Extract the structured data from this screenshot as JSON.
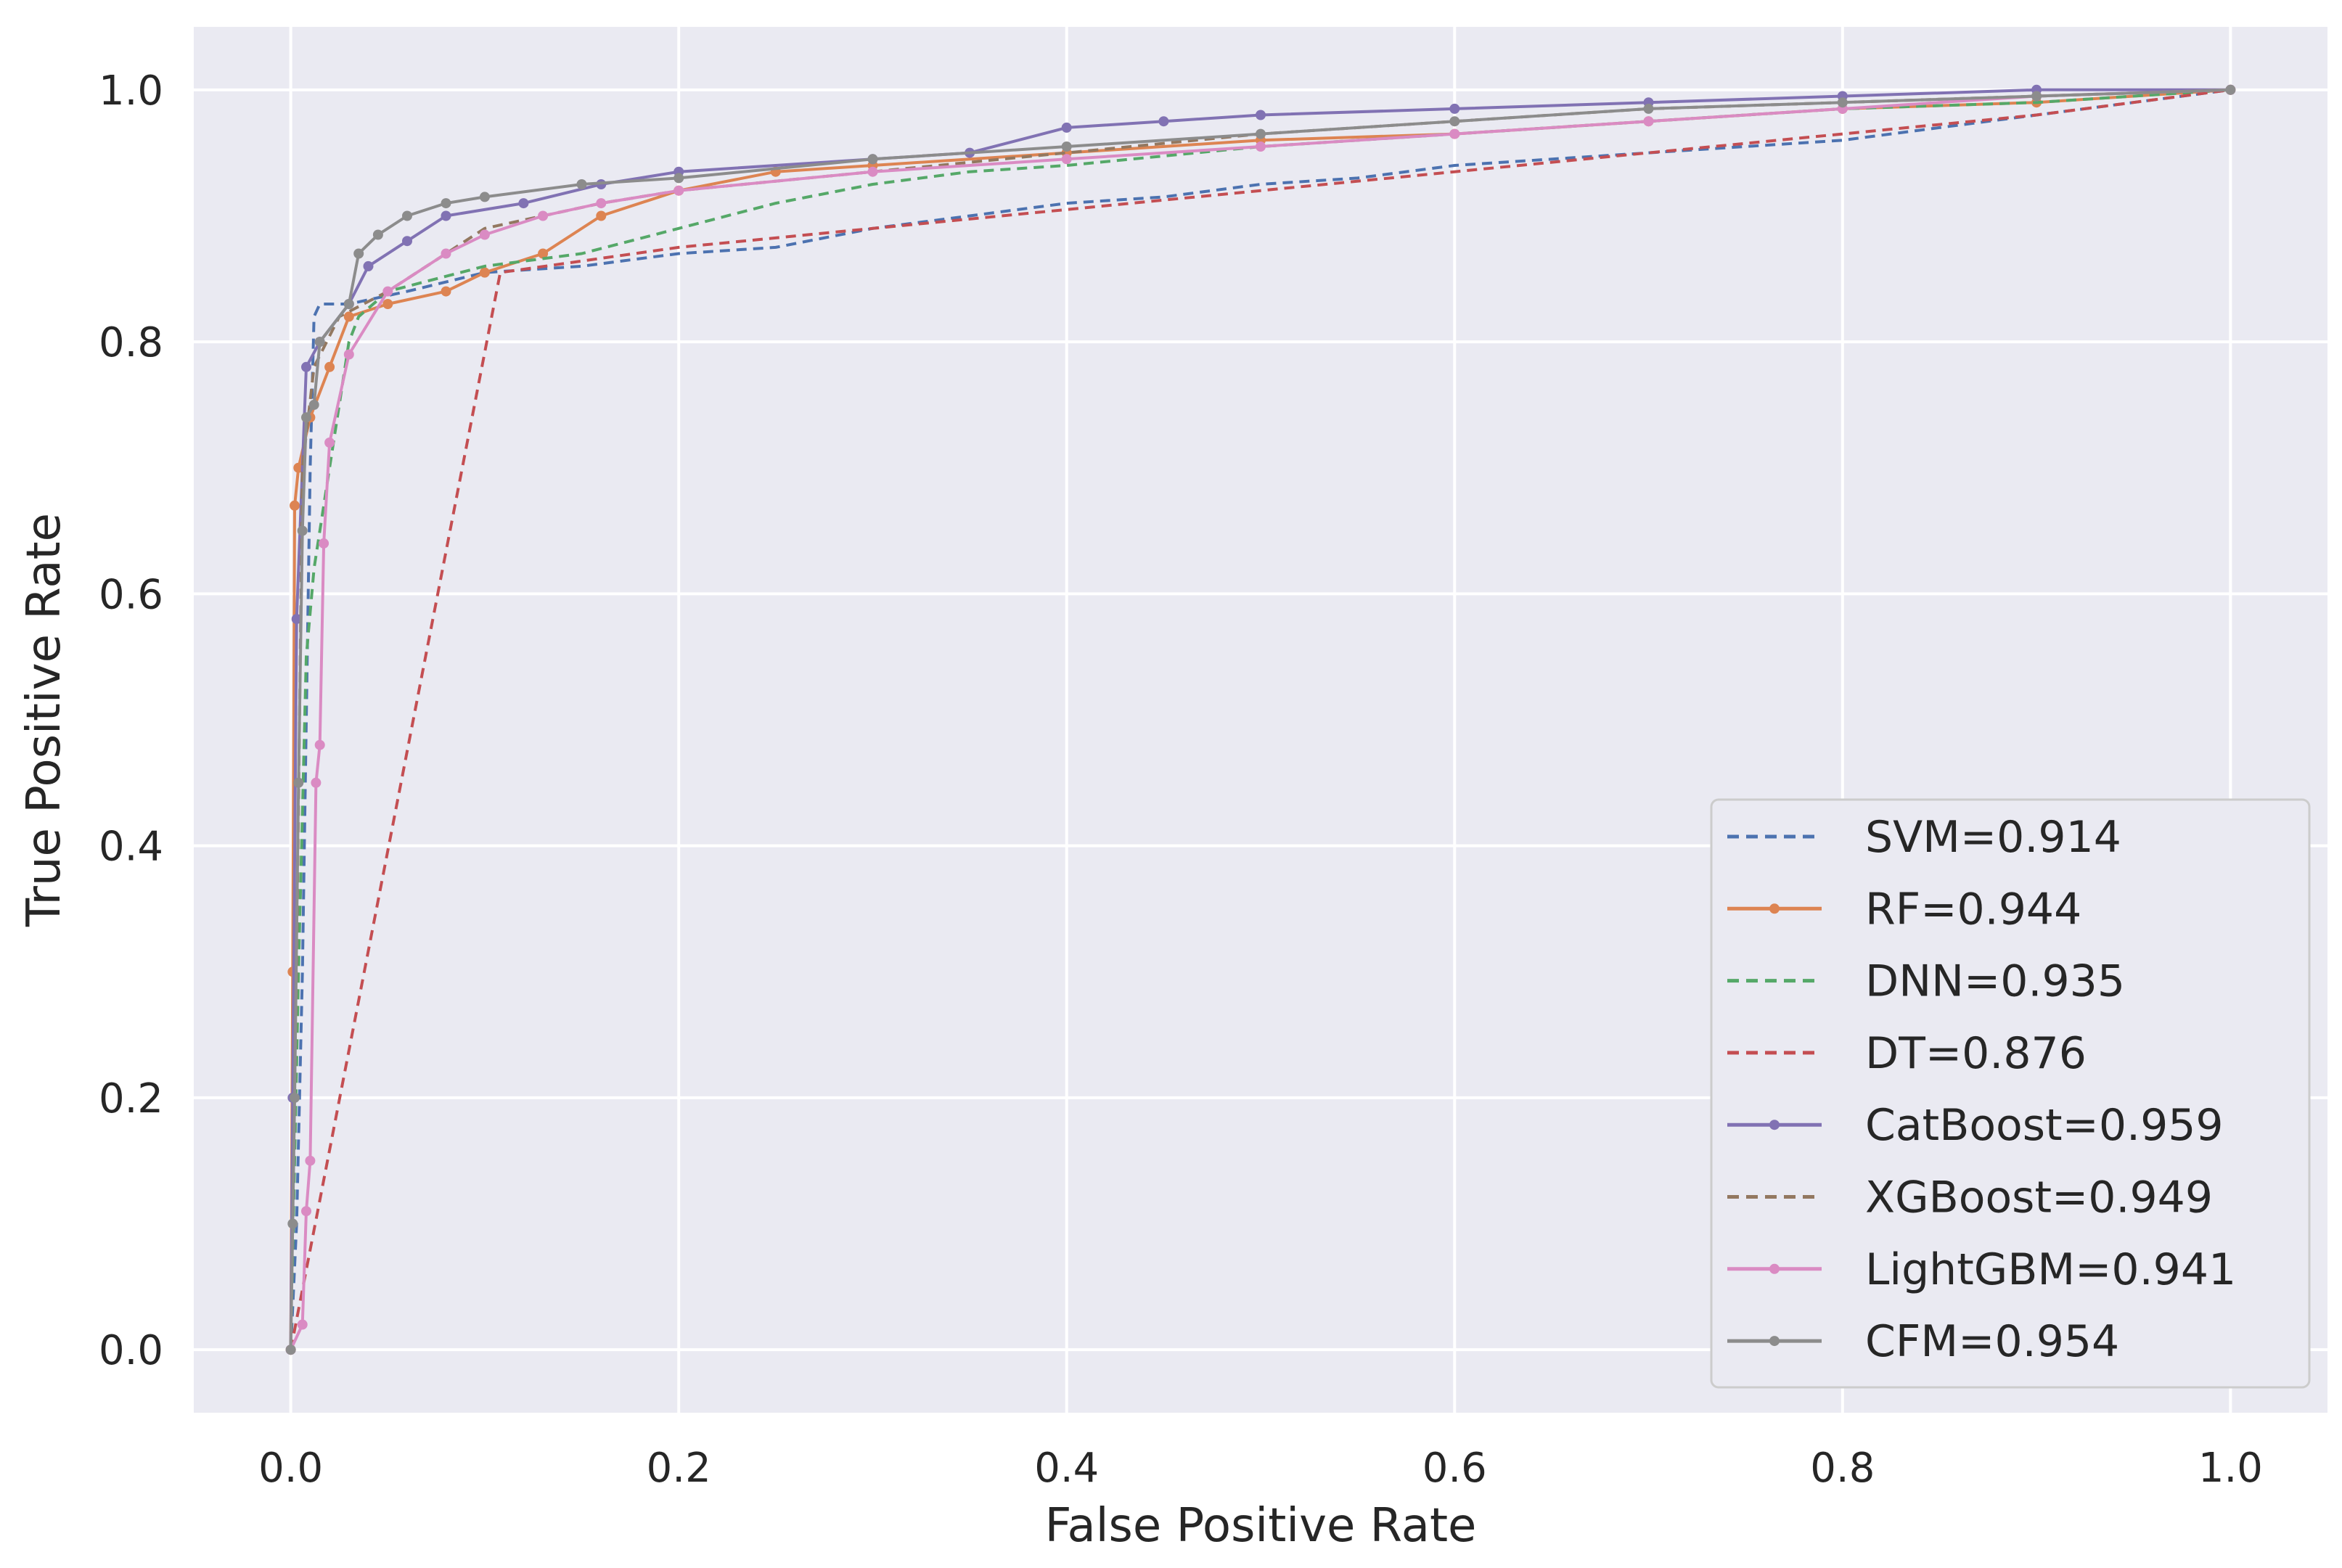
{
  "chart_data": {
    "type": "line",
    "title": "",
    "xlabel": "False Positive Rate",
    "ylabel": "True Positive Rate",
    "xlim": [
      -0.05,
      1.05
    ],
    "ylim": [
      -0.05,
      1.05
    ],
    "xticks": [
      "0.0",
      "0.2",
      "0.4",
      "0.6",
      "0.8",
      "1.0"
    ],
    "yticks": [
      "0.0",
      "0.2",
      "0.4",
      "0.6",
      "0.8",
      "1.0"
    ],
    "grid": true,
    "legend_position": "lower-right",
    "series": [
      {
        "name": "SVM=0.914",
        "color": "#4c72b0",
        "style": "dashed",
        "markers": false,
        "points": [
          [
            0,
            0
          ],
          [
            0.003,
            0.1
          ],
          [
            0.006,
            0.3
          ],
          [
            0.008,
            0.5
          ],
          [
            0.01,
            0.7
          ],
          [
            0.012,
            0.82
          ],
          [
            0.015,
            0.83
          ],
          [
            0.03,
            0.83
          ],
          [
            0.06,
            0.84
          ],
          [
            0.1,
            0.855
          ],
          [
            0.15,
            0.86
          ],
          [
            0.2,
            0.87
          ],
          [
            0.25,
            0.875
          ],
          [
            0.3,
            0.89
          ],
          [
            0.35,
            0.9
          ],
          [
            0.4,
            0.91
          ],
          [
            0.45,
            0.915
          ],
          [
            0.5,
            0.925
          ],
          [
            0.55,
            0.93
          ],
          [
            0.6,
            0.94
          ],
          [
            0.7,
            0.95
          ],
          [
            0.8,
            0.96
          ],
          [
            0.85,
            0.97
          ],
          [
            0.9,
            0.98
          ],
          [
            0.95,
            0.99
          ],
          [
            1.0,
            1.0
          ]
        ]
      },
      {
        "name": "RF=0.944",
        "color": "#dd8452",
        "style": "solid",
        "markers": true,
        "points": [
          [
            0,
            0
          ],
          [
            0.001,
            0.3
          ],
          [
            0.002,
            0.67
          ],
          [
            0.004,
            0.7
          ],
          [
            0.01,
            0.74
          ],
          [
            0.02,
            0.78
          ],
          [
            0.03,
            0.82
          ],
          [
            0.05,
            0.83
          ],
          [
            0.08,
            0.84
          ],
          [
            0.1,
            0.855
          ],
          [
            0.13,
            0.87
          ],
          [
            0.16,
            0.9
          ],
          [
            0.2,
            0.92
          ],
          [
            0.25,
            0.935
          ],
          [
            0.3,
            0.94
          ],
          [
            0.4,
            0.95
          ],
          [
            0.5,
            0.96
          ],
          [
            0.6,
            0.965
          ],
          [
            0.7,
            0.975
          ],
          [
            0.8,
            0.985
          ],
          [
            0.9,
            0.99
          ],
          [
            1.0,
            1.0
          ]
        ]
      },
      {
        "name": "DNN=0.935",
        "color": "#55a868",
        "style": "dashed",
        "markers": false,
        "points": [
          [
            0,
            0
          ],
          [
            0.004,
            0.3
          ],
          [
            0.008,
            0.55
          ],
          [
            0.012,
            0.62
          ],
          [
            0.02,
            0.7
          ],
          [
            0.025,
            0.75
          ],
          [
            0.03,
            0.8
          ],
          [
            0.035,
            0.82
          ],
          [
            0.05,
            0.84
          ],
          [
            0.1,
            0.86
          ],
          [
            0.15,
            0.87
          ],
          [
            0.2,
            0.89
          ],
          [
            0.25,
            0.91
          ],
          [
            0.3,
            0.925
          ],
          [
            0.35,
            0.935
          ],
          [
            0.4,
            0.94
          ],
          [
            0.5,
            0.955
          ],
          [
            0.6,
            0.965
          ],
          [
            0.7,
            0.975
          ],
          [
            0.8,
            0.985
          ],
          [
            0.9,
            0.99
          ],
          [
            1.0,
            1.0
          ]
        ]
      },
      {
        "name": "DT=0.876",
        "color": "#c44e52",
        "style": "dashed",
        "markers": false,
        "points": [
          [
            0,
            0
          ],
          [
            0.108,
            0.855
          ],
          [
            0.2,
            0.875
          ],
          [
            0.3,
            0.89
          ],
          [
            0.4,
            0.905
          ],
          [
            0.5,
            0.92
          ],
          [
            0.6,
            0.935
          ],
          [
            0.7,
            0.95
          ],
          [
            0.8,
            0.965
          ],
          [
            0.9,
            0.98
          ],
          [
            1.0,
            1.0
          ]
        ]
      },
      {
        "name": "CatBoost=0.959",
        "color": "#8172b3",
        "style": "solid",
        "markers": true,
        "points": [
          [
            0,
            0
          ],
          [
            0.001,
            0.2
          ],
          [
            0.003,
            0.58
          ],
          [
            0.008,
            0.78
          ],
          [
            0.015,
            0.8
          ],
          [
            0.03,
            0.83
          ],
          [
            0.04,
            0.86
          ],
          [
            0.06,
            0.88
          ],
          [
            0.08,
            0.9
          ],
          [
            0.12,
            0.91
          ],
          [
            0.16,
            0.925
          ],
          [
            0.2,
            0.935
          ],
          [
            0.3,
            0.945
          ],
          [
            0.35,
            0.95
          ],
          [
            0.4,
            0.97
          ],
          [
            0.45,
            0.975
          ],
          [
            0.5,
            0.98
          ],
          [
            0.6,
            0.985
          ],
          [
            0.7,
            0.99
          ],
          [
            0.8,
            0.995
          ],
          [
            0.9,
            1.0
          ],
          [
            1.0,
            1.0
          ]
        ]
      },
      {
        "name": "XGBoost=0.949",
        "color": "#937860",
        "style": "dashed",
        "markers": false,
        "points": [
          [
            0,
            0
          ],
          [
            0.003,
            0.3
          ],
          [
            0.006,
            0.7
          ],
          [
            0.012,
            0.78
          ],
          [
            0.025,
            0.82
          ],
          [
            0.05,
            0.84
          ],
          [
            0.08,
            0.87
          ],
          [
            0.1,
            0.89
          ],
          [
            0.13,
            0.9
          ],
          [
            0.16,
            0.91
          ],
          [
            0.2,
            0.92
          ],
          [
            0.3,
            0.935
          ],
          [
            0.4,
            0.95
          ],
          [
            0.5,
            0.965
          ],
          [
            0.6,
            0.975
          ],
          [
            0.7,
            0.985
          ],
          [
            0.8,
            0.99
          ],
          [
            0.9,
            0.995
          ],
          [
            1.0,
            1.0
          ]
        ]
      },
      {
        "name": "LightGBM=0.941",
        "color": "#da8bc3",
        "style": "solid",
        "markers": true,
        "points": [
          [
            0,
            0
          ],
          [
            0.006,
            0.02
          ],
          [
            0.008,
            0.11
          ],
          [
            0.01,
            0.15
          ],
          [
            0.013,
            0.45
          ],
          [
            0.015,
            0.48
          ],
          [
            0.017,
            0.64
          ],
          [
            0.02,
            0.72
          ],
          [
            0.03,
            0.79
          ],
          [
            0.05,
            0.84
          ],
          [
            0.08,
            0.87
          ],
          [
            0.1,
            0.885
          ],
          [
            0.13,
            0.9
          ],
          [
            0.16,
            0.91
          ],
          [
            0.2,
            0.92
          ],
          [
            0.3,
            0.935
          ],
          [
            0.4,
            0.945
          ],
          [
            0.5,
            0.955
          ],
          [
            0.6,
            0.965
          ],
          [
            0.7,
            0.975
          ],
          [
            0.8,
            0.985
          ],
          [
            0.9,
            0.995
          ],
          [
            1.0,
            1.0
          ]
        ]
      },
      {
        "name": "CFM=0.954",
        "color": "#8c8c8c",
        "style": "solid",
        "markers": true,
        "points": [
          [
            0,
            0
          ],
          [
            0.001,
            0.1
          ],
          [
            0.002,
            0.2
          ],
          [
            0.004,
            0.45
          ],
          [
            0.006,
            0.65
          ],
          [
            0.008,
            0.74
          ],
          [
            0.012,
            0.75
          ],
          [
            0.015,
            0.8
          ],
          [
            0.03,
            0.83
          ],
          [
            0.035,
            0.87
          ],
          [
            0.045,
            0.885
          ],
          [
            0.06,
            0.9
          ],
          [
            0.08,
            0.91
          ],
          [
            0.1,
            0.915
          ],
          [
            0.15,
            0.925
          ],
          [
            0.2,
            0.93
          ],
          [
            0.3,
            0.945
          ],
          [
            0.4,
            0.955
          ],
          [
            0.5,
            0.965
          ],
          [
            0.6,
            0.975
          ],
          [
            0.7,
            0.985
          ],
          [
            0.8,
            0.99
          ],
          [
            0.9,
            0.995
          ],
          [
            1.0,
            1.0
          ]
        ]
      }
    ]
  }
}
